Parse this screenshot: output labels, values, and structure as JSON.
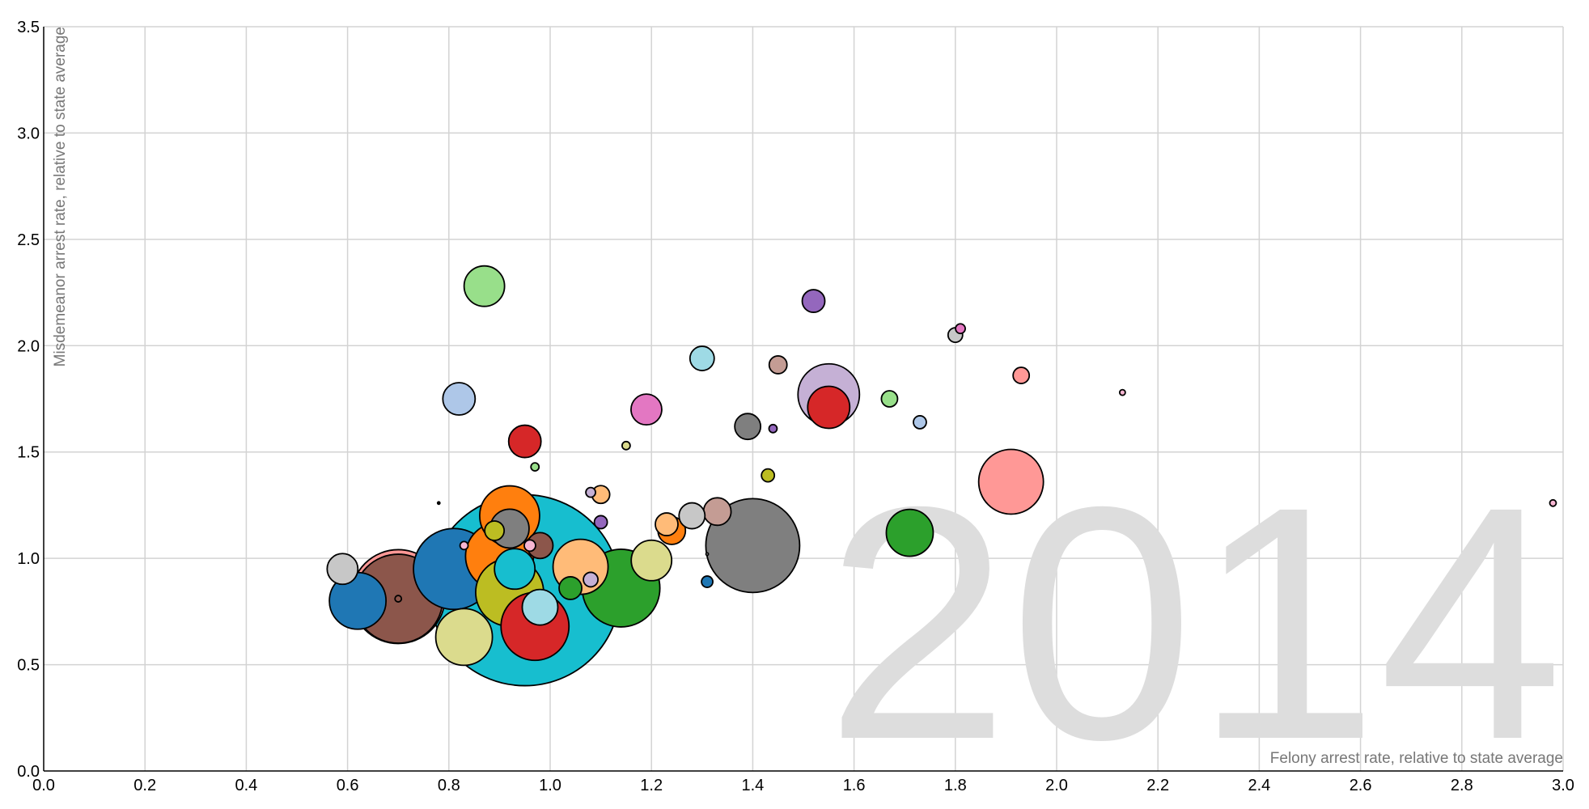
{
  "chart_data": {
    "type": "scatter",
    "subtype": "bubble",
    "xlabel": "Felony arrest rate, relative to state average",
    "ylabel": "Misdemeanor arrest rate, relative to state average",
    "year": "2014",
    "xlim": [
      0,
      3.0
    ],
    "ylim": [
      0,
      3.5
    ],
    "x_ticks": [
      "0.0",
      "0.2",
      "0.4",
      "0.6",
      "0.8",
      "1.0",
      "1.2",
      "1.4",
      "1.6",
      "1.8",
      "2.0",
      "2.2",
      "2.4",
      "2.6",
      "2.8",
      "3.0"
    ],
    "y_ticks": [
      "0.0",
      "0.5",
      "1.0",
      "1.5",
      "2.0",
      "2.5",
      "3.0",
      "3.5"
    ],
    "grid": true,
    "points": [
      {
        "x": 0.95,
        "y": 0.85,
        "r": 118,
        "color": "#17becf"
      },
      {
        "x": 0.7,
        "y": 0.82,
        "r": 58,
        "color": "#ff9896"
      },
      {
        "x": 0.7,
        "y": 0.81,
        "r": 55,
        "color": "#8c564b"
      },
      {
        "x": 1.4,
        "y": 1.06,
        "r": 58,
        "color": "#7f7f7f"
      },
      {
        "x": 1.55,
        "y": 1.77,
        "r": 38,
        "color": "#c5b0d5"
      },
      {
        "x": 1.91,
        "y": 1.36,
        "r": 40,
        "color": "#ff9896"
      },
      {
        "x": 1.14,
        "y": 0.86,
        "r": 48,
        "color": "#2ca02c"
      },
      {
        "x": 0.9,
        "y": 1.01,
        "r": 42,
        "color": "#ff7f0e"
      },
      {
        "x": 0.92,
        "y": 0.84,
        "r": 42,
        "color": "#bcbd22"
      },
      {
        "x": 0.92,
        "y": 1.2,
        "r": 37,
        "color": "#ff7f0e"
      },
      {
        "x": 0.81,
        "y": 0.95,
        "r": 50,
        "color": "#1f77b4"
      },
      {
        "x": 0.97,
        "y": 0.68,
        "r": 42,
        "color": "#d62728"
      },
      {
        "x": 1.06,
        "y": 0.96,
        "r": 34,
        "color": "#ffbb78"
      },
      {
        "x": 0.83,
        "y": 0.63,
        "r": 35,
        "color": "#dbdb8d"
      },
      {
        "x": 0.62,
        "y": 0.8,
        "r": 35,
        "color": "#1f77b4"
      },
      {
        "x": 1.55,
        "y": 1.71,
        "r": 26,
        "color": "#d62728"
      },
      {
        "x": 1.71,
        "y": 1.12,
        "r": 29,
        "color": "#2ca02c"
      },
      {
        "x": 0.87,
        "y": 2.28,
        "r": 25,
        "color": "#98df8a"
      },
      {
        "x": 1.2,
        "y": 0.99,
        "r": 25,
        "color": "#dbdb8d"
      },
      {
        "x": 0.92,
        "y": 1.14,
        "r": 24,
        "color": "#7f7f7f"
      },
      {
        "x": 0.93,
        "y": 0.95,
        "r": 25,
        "color": "#17becf"
      },
      {
        "x": 0.98,
        "y": 0.77,
        "r": 22,
        "color": "#9edae5"
      },
      {
        "x": 0.82,
        "y": 1.75,
        "r": 20,
        "color": "#aec7e8"
      },
      {
        "x": 0.95,
        "y": 1.55,
        "r": 20,
        "color": "#d62728"
      },
      {
        "x": 1.19,
        "y": 1.7,
        "r": 19,
        "color": "#e377c2"
      },
      {
        "x": 1.39,
        "y": 1.62,
        "r": 16,
        "color": "#7f7f7f"
      },
      {
        "x": 1.33,
        "y": 1.22,
        "r": 17,
        "color": "#c49c94"
      },
      {
        "x": 1.28,
        "y": 1.2,
        "r": 16,
        "color": "#c7c7c7"
      },
      {
        "x": 1.24,
        "y": 1.13,
        "r": 17,
        "color": "#ff7f0e"
      },
      {
        "x": 1.23,
        "y": 1.16,
        "r": 14,
        "color": "#ffbb78"
      },
      {
        "x": 0.98,
        "y": 1.06,
        "r": 16,
        "color": "#8c564b"
      },
      {
        "x": 1.3,
        "y": 1.94,
        "r": 15,
        "color": "#9edae5"
      },
      {
        "x": 0.59,
        "y": 0.95,
        "r": 19,
        "color": "#c7c7c7"
      },
      {
        "x": 1.04,
        "y": 0.86,
        "r": 14,
        "color": "#2ca02c"
      },
      {
        "x": 1.52,
        "y": 2.21,
        "r": 14,
        "color": "#9467bd"
      },
      {
        "x": 1.45,
        "y": 1.91,
        "r": 11,
        "color": "#c49c94"
      },
      {
        "x": 1.67,
        "y": 1.75,
        "r": 10,
        "color": "#98df8a"
      },
      {
        "x": 1.93,
        "y": 1.86,
        "r": 10,
        "color": "#ff9896"
      },
      {
        "x": 1.1,
        "y": 1.3,
        "r": 11,
        "color": "#ffbb78"
      },
      {
        "x": 0.89,
        "y": 1.13,
        "r": 12,
        "color": "#bcbd22"
      },
      {
        "x": 1.8,
        "y": 2.05,
        "r": 9,
        "color": "#c7c7c7"
      },
      {
        "x": 1.73,
        "y": 1.64,
        "r": 8,
        "color": "#aec7e8"
      },
      {
        "x": 1.08,
        "y": 0.9,
        "r": 9,
        "color": "#c5b0d5"
      },
      {
        "x": 1.1,
        "y": 1.17,
        "r": 8,
        "color": "#9467bd"
      },
      {
        "x": 1.43,
        "y": 1.39,
        "r": 8,
        "color": "#bcbd22"
      },
      {
        "x": 1.08,
        "y": 1.31,
        "r": 6,
        "color": "#c5b0d5"
      },
      {
        "x": 1.31,
        "y": 0.89,
        "r": 7,
        "color": "#1f77b4"
      },
      {
        "x": 0.96,
        "y": 1.06,
        "r": 7,
        "color": "#f7b6d2"
      },
      {
        "x": 1.81,
        "y": 2.08,
        "r": 6,
        "color": "#e377c2"
      },
      {
        "x": 1.15,
        "y": 1.53,
        "r": 5,
        "color": "#dbdb8d"
      },
      {
        "x": 0.97,
        "y": 1.43,
        "r": 5,
        "color": "#98df8a"
      },
      {
        "x": 1.44,
        "y": 1.61,
        "r": 5,
        "color": "#9467bd"
      },
      {
        "x": 0.83,
        "y": 1.06,
        "r": 5,
        "color": "#f7b6d2"
      },
      {
        "x": 0.7,
        "y": 0.81,
        "r": 4,
        "color": "#8c564b"
      },
      {
        "x": 2.98,
        "y": 1.26,
        "r": 4,
        "color": "#f7b6d2"
      },
      {
        "x": 2.13,
        "y": 1.78,
        "r": 3.5,
        "color": "#f7b6d2"
      },
      {
        "x": 0.78,
        "y": 1.26,
        "r": 1.5,
        "color": "#000000"
      },
      {
        "x": 1.31,
        "y": 1.02,
        "r": 1.5,
        "color": "#ffffff"
      }
    ]
  }
}
